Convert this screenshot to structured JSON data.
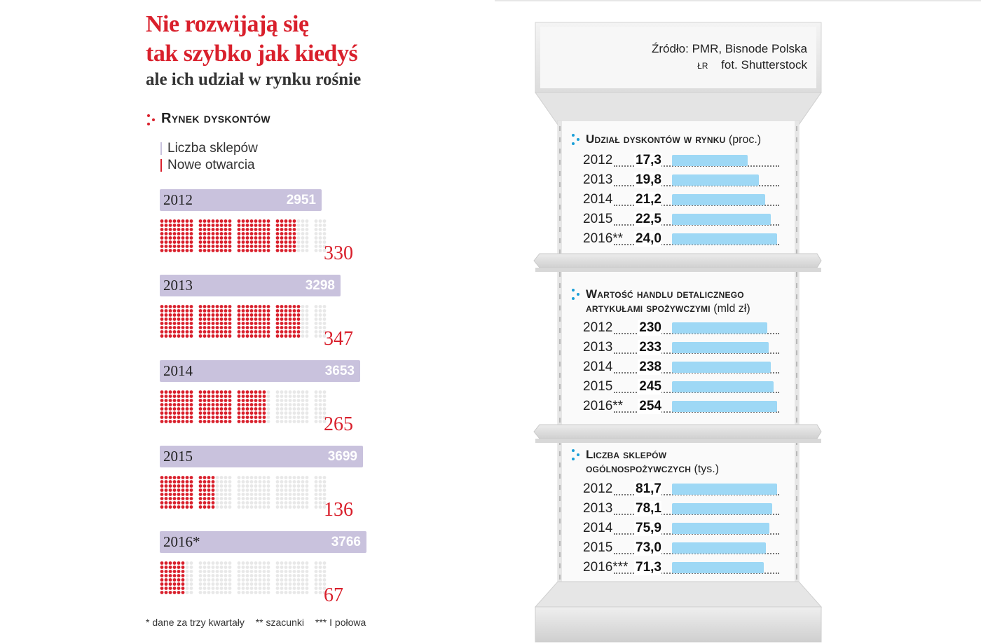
{
  "title_line1": "Nie rozwijają się",
  "title_line2": "tak szybko jak kiedyś",
  "subtitle": "ale ich udział w rynku rośnie",
  "colors": {
    "red": "#d9202c",
    "lavender": "#c9c2dd",
    "blue": "#9ed8f5",
    "dot_empty": "#e8e8e8"
  },
  "chart_data": [
    {
      "type": "bar",
      "title": "Rynek dyskontów",
      "legend": [
        "Liczba sklepów",
        "Nowe otwarcia"
      ],
      "categories": [
        "2012",
        "2013",
        "2014",
        "2015",
        "2016*"
      ],
      "series": [
        {
          "name": "Liczba sklepów",
          "values": [
            2951,
            3298,
            3653,
            3699,
            3766
          ]
        },
        {
          "name": "Nowe otwarcia",
          "values": [
            330,
            347,
            265,
            136,
            67
          ]
        }
      ],
      "count_labels": [
        "2951",
        "3298",
        "3653",
        "3699",
        "3766"
      ],
      "new_labels": [
        "330",
        "347",
        "265",
        "136",
        "67"
      ]
    },
    {
      "type": "bar",
      "title": "Udział dyskontów w rynku",
      "unit": "(proc.)",
      "categories": [
        "2012",
        "2013",
        "2014",
        "2015",
        "2016**"
      ],
      "values": [
        17.3,
        19.8,
        21.2,
        22.5,
        24.0
      ],
      "value_labels": [
        "17,3",
        "19,8",
        "21,2",
        "22,5",
        "24,0"
      ]
    },
    {
      "type": "bar",
      "title": "Wartość handlu detalicznego artykułami spożywczymi",
      "title_line1": "Wartość handlu detalicznego",
      "title_line2": "artykułami spożywczymi",
      "unit": "(mld zł)",
      "categories": [
        "2012",
        "2013",
        "2014",
        "2015",
        "2016**"
      ],
      "values": [
        230,
        233,
        238,
        245,
        254
      ],
      "value_labels": [
        "230",
        "233",
        "238",
        "245",
        "254"
      ]
    },
    {
      "type": "bar",
      "title": "Liczba sklepów ogólnospożywczych",
      "title_line1": "Liczba sklepów",
      "title_line2": "ogólnospożywczych",
      "unit": "(tys.)",
      "categories": [
        "2012",
        "2013",
        "2014",
        "2015",
        "2016***"
      ],
      "values": [
        81.7,
        78.1,
        75.9,
        73.0,
        71.3
      ],
      "value_labels": [
        "81,7",
        "78,1",
        "75,9",
        "73,0",
        "71,3"
      ]
    }
  ],
  "source": "Źródło: PMR, Bisnode Polska",
  "author": "ŁR",
  "photo": "fot. Shutterstock",
  "footnotes": [
    "* dane za trzy kwartały",
    "** szacunki",
    "*** I połowa"
  ]
}
